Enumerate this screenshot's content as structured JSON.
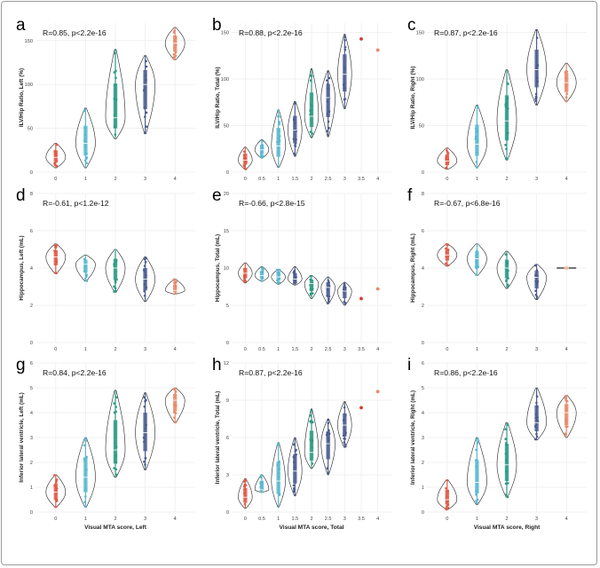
{
  "colors": {
    "0": "#e15b47",
    "0.5": "#5ab8cf",
    "1": "#5ab8cf",
    "1.5": "#4a5d8f",
    "2": "#2a9a84",
    "2.5": "#4a5d8f",
    "3": "#4a5d8f",
    "3.5": "#d63a2e",
    "4": "#e88a6a",
    "grid": "#ececec",
    "outline": "#222222"
  },
  "chart_data": [
    {
      "letter": "a",
      "type": "violin",
      "stat": "R=0.85, p<2.2e-16",
      "ylabel": "ILV/Hip Ratio, Left (%)",
      "xlabel": "",
      "ylim": [
        0,
        170
      ],
      "yticks": [
        0,
        50,
        100,
        150
      ],
      "categories": [
        "0",
        "1",
        "2",
        "3",
        "4"
      ],
      "groups": [
        {
          "x": "0",
          "min": 5,
          "max": 33,
          "median": 17
        },
        {
          "x": "1",
          "min": 5,
          "max": 73,
          "median": 33
        },
        {
          "x": "2",
          "min": 38,
          "max": 140,
          "median": 62
        },
        {
          "x": "3",
          "min": 44,
          "max": 133,
          "median": 100
        },
        {
          "x": "4",
          "min": 128,
          "max": 165,
          "median": 147
        }
      ]
    },
    {
      "letter": "b",
      "type": "violin",
      "stat": "R=0.88, p<2.2e-16",
      "ylabel": "ILV/Hip Ratio, Total (%)",
      "xlabel": "",
      "ylim": [
        0,
        160
      ],
      "yticks": [
        0,
        50,
        100,
        150
      ],
      "categories": [
        "0",
        "0.5",
        "1",
        "1.5",
        "2",
        "2.5",
        "3",
        "3.5",
        "4"
      ],
      "groups": [
        {
          "x": "0",
          "min": 3,
          "max": 27,
          "median": 13
        },
        {
          "x": "0.5",
          "min": 15,
          "max": 35,
          "median": 24
        },
        {
          "x": "1",
          "min": 5,
          "max": 67,
          "median": 28
        },
        {
          "x": "1.5",
          "min": 17,
          "max": 76,
          "median": 45
        },
        {
          "x": "2",
          "min": 37,
          "max": 111,
          "median": 60
        },
        {
          "x": "2.5",
          "min": 38,
          "max": 109,
          "median": 80
        },
        {
          "x": "3",
          "min": 68,
          "max": 148,
          "median": 105
        },
        {
          "x": "3.5",
          "point": 143
        },
        {
          "x": "4",
          "point": 131
        }
      ]
    },
    {
      "letter": "c",
      "type": "violin",
      "stat": "R=0.87, p<2.2e-16",
      "ylabel": "ILV/Hip Ratio, Right (%)",
      "xlabel": "",
      "ylim": [
        0,
        160
      ],
      "yticks": [
        0,
        50,
        100,
        150
      ],
      "categories": [
        "0",
        "1",
        "2",
        "3",
        "4"
      ],
      "groups": [
        {
          "x": "0",
          "min": 3,
          "max": 26,
          "median": 12
        },
        {
          "x": "1",
          "min": 5,
          "max": 72,
          "median": 30
        },
        {
          "x": "2",
          "min": 13,
          "max": 110,
          "median": 55
        },
        {
          "x": "3",
          "min": 72,
          "max": 153,
          "median": 110
        },
        {
          "x": "4",
          "min": 76,
          "max": 117,
          "median": 96
        }
      ]
    },
    {
      "letter": "d",
      "type": "violin",
      "stat": "R=-0.61, p<1.2e-12",
      "ylabel": "Hippocampus, Left (mL)",
      "xlabel": "",
      "ylim": [
        0,
        8
      ],
      "yticks": [
        0,
        2,
        4,
        6,
        8
      ],
      "categories": [
        "0",
        "1",
        "2",
        "3",
        "4"
      ],
      "groups": [
        {
          "x": "0",
          "min": 3.7,
          "max": 5.3,
          "median": 4.6
        },
        {
          "x": "1",
          "min": 3.3,
          "max": 4.7,
          "median": 4.2
        },
        {
          "x": "2",
          "min": 2.7,
          "max": 5.0,
          "median": 4.0
        },
        {
          "x": "3",
          "min": 2.2,
          "max": 4.6,
          "median": 3.4
        },
        {
          "x": "4",
          "min": 2.6,
          "max": 3.4,
          "median": 2.8
        }
      ]
    },
    {
      "letter": "e",
      "type": "violin",
      "stat": "R=-0.66, p<2.8e-15",
      "ylabel": "Hippocampus, Total (mL)",
      "xlabel": "",
      "ylim": [
        0,
        20
      ],
      "yticks": [
        0,
        5,
        10,
        15,
        20
      ],
      "categories": [
        "0",
        "0.5",
        "1",
        "1.5",
        "2",
        "2.5",
        "3",
        "3.5",
        "4"
      ],
      "groups": [
        {
          "x": "0",
          "min": 8.0,
          "max": 10.7,
          "median": 9.3
        },
        {
          "x": "0.5",
          "min": 8.2,
          "max": 10.2,
          "median": 9.0
        },
        {
          "x": "1",
          "min": 7.8,
          "max": 9.8,
          "median": 8.8
        },
        {
          "x": "1.5",
          "min": 7.7,
          "max": 10.2,
          "median": 8.5
        },
        {
          "x": "2",
          "min": 5.9,
          "max": 9.0,
          "median": 7.9
        },
        {
          "x": "2.5",
          "min": 5.2,
          "max": 8.8,
          "median": 7.4
        },
        {
          "x": "3",
          "min": 5.0,
          "max": 8.1,
          "median": 6.9
        },
        {
          "x": "3.5",
          "point": 5.9
        },
        {
          "x": "4",
          "point": 7.2
        }
      ]
    },
    {
      "letter": "f",
      "type": "violin",
      "stat": "R=-0.67, p<6.8e-16",
      "ylabel": "Hippocampus, Right (mL)",
      "xlabel": "",
      "ylim": [
        0,
        8
      ],
      "yticks": [
        0,
        2,
        4,
        6,
        8
      ],
      "categories": [
        "0",
        "1",
        "2",
        "3",
        "4"
      ],
      "groups": [
        {
          "x": "0",
          "min": 4.1,
          "max": 5.3,
          "median": 4.7
        },
        {
          "x": "1",
          "min": 3.6,
          "max": 5.3,
          "median": 4.5
        },
        {
          "x": "2",
          "min": 2.9,
          "max": 4.9,
          "median": 4.0
        },
        {
          "x": "3",
          "min": 2.3,
          "max": 4.2,
          "median": 3.5
        },
        {
          "x": "4",
          "min": 4.0,
          "max": 4.0,
          "median": 4.0
        }
      ]
    },
    {
      "letter": "g",
      "type": "violin",
      "stat": "R=0.84, p<2.2e-16",
      "ylabel": "Inferior lateral ventricle, Left (mL)",
      "xlabel": "Visual MTA score, Left",
      "ylim": [
        0,
        6
      ],
      "yticks": [
        0,
        1,
        2,
        3,
        4,
        5,
        6
      ],
      "categories": [
        "0",
        "1",
        "2",
        "3",
        "4"
      ],
      "groups": [
        {
          "x": "0",
          "min": 0.2,
          "max": 1.5,
          "median": 0.8
        },
        {
          "x": "1",
          "min": 0.2,
          "max": 3.0,
          "median": 1.4
        },
        {
          "x": "2",
          "min": 1.4,
          "max": 4.9,
          "median": 2.5
        },
        {
          "x": "3",
          "min": 1.7,
          "max": 4.8,
          "median": 3.2
        },
        {
          "x": "4",
          "min": 3.6,
          "max": 5.0,
          "median": 4.5
        }
      ]
    },
    {
      "letter": "h",
      "type": "violin",
      "stat": "R=0.87, p<2.2e-16",
      "ylabel": "Inferior lateral ventricle, Total (mL)",
      "xlabel": "Visual MTA score, Total",
      "ylim": [
        0,
        12
      ],
      "yticks": [
        0,
        3,
        6,
        9,
        12
      ],
      "categories": [
        "0",
        "0.5",
        "1",
        "1.5",
        "2",
        "2.5",
        "3",
        "3.5",
        "4"
      ],
      "groups": [
        {
          "x": "0",
          "min": 0.3,
          "max": 2.7,
          "median": 1.2
        },
        {
          "x": "0.5",
          "min": 1.6,
          "max": 3.0,
          "median": 1.8
        },
        {
          "x": "1",
          "min": 0.4,
          "max": 5.6,
          "median": 2.5
        },
        {
          "x": "1.5",
          "min": 1.3,
          "max": 6.0,
          "median": 3.3
        },
        {
          "x": "2",
          "min": 3.5,
          "max": 8.3,
          "median": 4.8
        },
        {
          "x": "2.5",
          "min": 3.0,
          "max": 7.5,
          "median": 5.5
        },
        {
          "x": "3",
          "min": 5.2,
          "max": 8.9,
          "median": 7.0
        },
        {
          "x": "3.5",
          "point": 8.4
        },
        {
          "x": "4",
          "point": 9.7
        }
      ]
    },
    {
      "letter": "i",
      "type": "violin",
      "stat": "R=0.86, p<2.2e-16",
      "ylabel": "Inferior lateral ventricle, Right (mL)",
      "xlabel": "Visual MTA score, Right",
      "ylim": [
        0,
        6
      ],
      "yticks": [
        0,
        1,
        2,
        3,
        4,
        5,
        6
      ],
      "categories": [
        "0",
        "1",
        "2",
        "3",
        "4"
      ],
      "groups": [
        {
          "x": "0",
          "min": 0.1,
          "max": 1.3,
          "median": 0.5
        },
        {
          "x": "1",
          "min": 0.3,
          "max": 3.0,
          "median": 1.2
        },
        {
          "x": "2",
          "min": 0.6,
          "max": 3.6,
          "median": 1.9
        },
        {
          "x": "3",
          "min": 2.9,
          "max": 5.0,
          "median": 3.6
        },
        {
          "x": "4",
          "min": 3.0,
          "max": 4.7,
          "median": 4.0
        }
      ]
    }
  ]
}
